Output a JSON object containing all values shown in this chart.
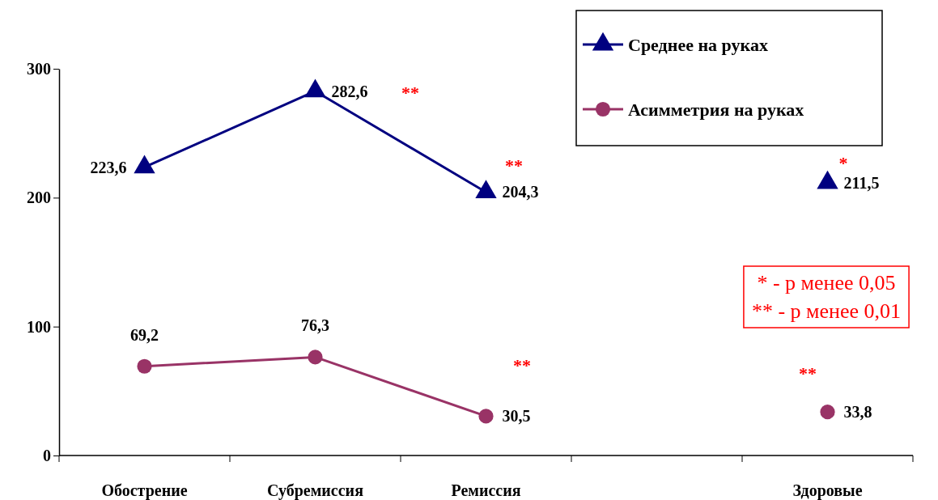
{
  "chart_data": {
    "type": "line",
    "categories": [
      "Обострение",
      "Субремиссия",
      "Ремиссия",
      null,
      "Здоровые"
    ],
    "series": [
      {
        "name": "Среднее на руках",
        "color": "#000080",
        "marker": "triangle",
        "values": [
          223.6,
          282.6,
          204.3,
          null,
          211.5
        ],
        "value_labels": [
          "223,6",
          "282,6",
          "204,3",
          null,
          "211,5"
        ]
      },
      {
        "name": "Асимметрия на руках",
        "color": "#993366",
        "marker": "circle",
        "values": [
          69.2,
          76.3,
          30.5,
          null,
          33.8
        ],
        "value_labels": [
          "69,2",
          "76,3",
          "30,5",
          null,
          "33,8"
        ]
      }
    ],
    "ylim": [
      0,
      300
    ],
    "yticks": [
      0,
      100,
      200,
      300
    ],
    "grid": false,
    "legend": "top right",
    "annotations": [
      "**",
      "**",
      "*",
      "**",
      "**",
      "* - p менее 0,05",
      "** - p менее 0,01"
    ]
  }
}
